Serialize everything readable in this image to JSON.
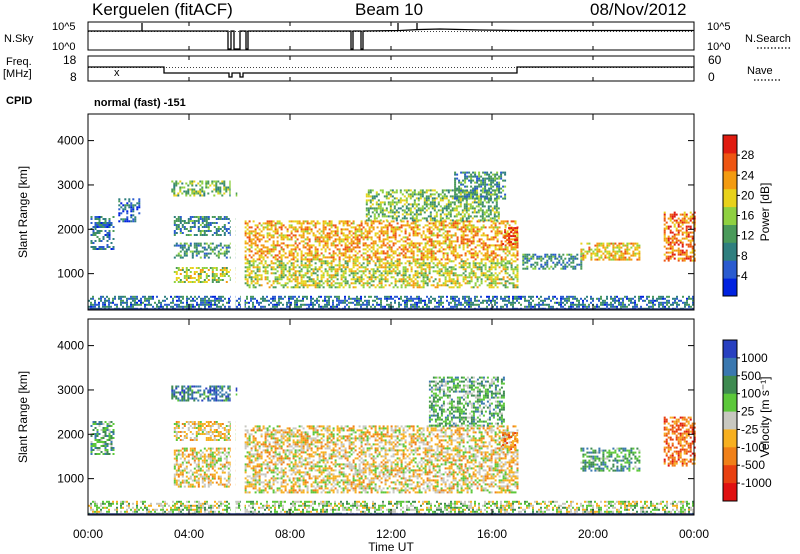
{
  "header": {
    "station": "Kerguelen (fitACF)",
    "beam": "Beam 10",
    "date": "08/Nov/2012"
  },
  "top_panels": {
    "nsky_label": "N.Sky",
    "nsky_ticks": [
      "10^5",
      "10^0"
    ],
    "nsearch_label": "N.Search",
    "nsearch_ticks": [
      "10^5",
      "10^0"
    ],
    "freq_label": "Freq.",
    "freq_unit": "[MHz]",
    "freq_ticks": [
      "18",
      "8"
    ],
    "nave_label": "Nave",
    "nave_ticks": [
      "60",
      "0"
    ],
    "cpid_label": "CPID",
    "cpid_value": "normal (fast) -151",
    "freq_marker": "x"
  },
  "chart_data": [
    {
      "type": "heatmap",
      "name": "power",
      "ylabel": "Slant Range [km]",
      "yticks": [
        "4000",
        "3000",
        "2000",
        "1000"
      ],
      "ylim": [
        180,
        4600
      ],
      "xlabel": "Time UT",
      "xticks": [
        "00:00",
        "04:00",
        "08:00",
        "12:00",
        "16:00",
        "20:00",
        "00:00"
      ],
      "xlim_hours": [
        0,
        24
      ],
      "colorbar": {
        "label": "Power [dB]",
        "tick_labels": [
          "28",
          "24",
          "20",
          "16",
          "12",
          "8",
          "4"
        ],
        "colors": [
          "#0022e0",
          "#2a5bd0",
          "#2f7f7f",
          "#4a9a5a",
          "#8fd141",
          "#e8d21b",
          "#f39b11",
          "#ee5512",
          "#e01b10"
        ]
      },
      "echo_regions": [
        {
          "t0": 0.1,
          "t1": 1.0,
          "r0": 1550,
          "r1": 2300,
          "level": 0.25
        },
        {
          "t0": 1.2,
          "t1": 2.0,
          "r0": 2200,
          "r1": 2700,
          "level": 0.2
        },
        {
          "t0": 3.3,
          "t1": 5.9,
          "r0": 2750,
          "r1": 3100,
          "level": 0.45
        },
        {
          "t0": 3.4,
          "t1": 5.8,
          "r0": 1850,
          "r1": 2300,
          "level": 0.3
        },
        {
          "t0": 3.4,
          "t1": 5.8,
          "r0": 1350,
          "r1": 1700,
          "level": 0.35
        },
        {
          "t0": 3.4,
          "t1": 5.8,
          "r0": 800,
          "r1": 1150,
          "level": 0.55
        },
        {
          "t0": 6.2,
          "t1": 17.0,
          "r0": 700,
          "r1": 1300,
          "level": 0.55
        },
        {
          "t0": 6.2,
          "t1": 17.0,
          "r0": 1300,
          "r1": 2200,
          "level": 0.7
        },
        {
          "t0": 11.0,
          "t1": 16.3,
          "r0": 2200,
          "r1": 2900,
          "level": 0.45
        },
        {
          "t0": 14.5,
          "t1": 16.5,
          "r0": 2700,
          "r1": 3300,
          "level": 0.35
        },
        {
          "t0": 16.4,
          "t1": 17.0,
          "r0": 1650,
          "r1": 2050,
          "level": 0.9
        },
        {
          "t0": 17.2,
          "t1": 19.5,
          "r0": 1100,
          "r1": 1450,
          "level": 0.3
        },
        {
          "t0": 19.5,
          "t1": 21.8,
          "r0": 1300,
          "r1": 1700,
          "level": 0.65
        },
        {
          "t0": 22.8,
          "t1": 24.0,
          "r0": 1300,
          "r1": 2400,
          "level": 0.8
        },
        {
          "t0": 0.0,
          "t1": 24.0,
          "r0": 200,
          "r1": 500,
          "level": 0.25
        }
      ]
    },
    {
      "type": "heatmap",
      "name": "velocity",
      "ylabel": "Slant Range [km]",
      "yticks": [
        "4000",
        "3000",
        "2000",
        "1000"
      ],
      "ylim": [
        180,
        4600
      ],
      "xlabel": "Time UT",
      "xticks": [
        "00:00",
        "04:00",
        "08:00",
        "12:00",
        "16:00",
        "20:00",
        "00:00"
      ],
      "xlim_hours": [
        0,
        24
      ],
      "colorbar": {
        "label": "Velocity [m s⁻¹]",
        "tick_labels": [
          "1000",
          "500",
          "100",
          "25",
          "-25",
          "-100",
          "-500",
          "-1000"
        ],
        "colors": [
          "#2840c0",
          "#3a78b0",
          "#3e8a50",
          "#5cc83a",
          "#c8c8c0",
          "#f7b020",
          "#f08018",
          "#e84010",
          "#e01010"
        ]
      },
      "echo_regions": [
        {
          "t0": 0.1,
          "t1": 1.0,
          "r0": 1550,
          "r1": 2300,
          "level": 0.7
        },
        {
          "t0": 3.3,
          "t1": 5.9,
          "r0": 2750,
          "r1": 3100,
          "level": 0.8
        },
        {
          "t0": 3.4,
          "t1": 5.8,
          "r0": 1850,
          "r1": 2300,
          "level": 0.45
        },
        {
          "t0": 3.4,
          "t1": 5.8,
          "r0": 800,
          "r1": 1700,
          "level": 0.45
        },
        {
          "t0": 6.2,
          "t1": 17.0,
          "r0": 700,
          "r1": 2200,
          "level": 0.45
        },
        {
          "t0": 13.5,
          "t1": 16.5,
          "r0": 2200,
          "r1": 3300,
          "level": 0.65
        },
        {
          "t0": 16.4,
          "t1": 17.0,
          "r0": 1650,
          "r1": 2050,
          "level": 0.3
        },
        {
          "t0": 19.5,
          "t1": 21.8,
          "r0": 1200,
          "r1": 1700,
          "level": 0.7
        },
        {
          "t0": 22.8,
          "t1": 24.0,
          "r0": 1300,
          "r1": 2400,
          "level": 0.25
        },
        {
          "t0": 0.0,
          "t1": 24.0,
          "r0": 200,
          "r1": 500,
          "level": 0.55
        }
      ]
    }
  ]
}
